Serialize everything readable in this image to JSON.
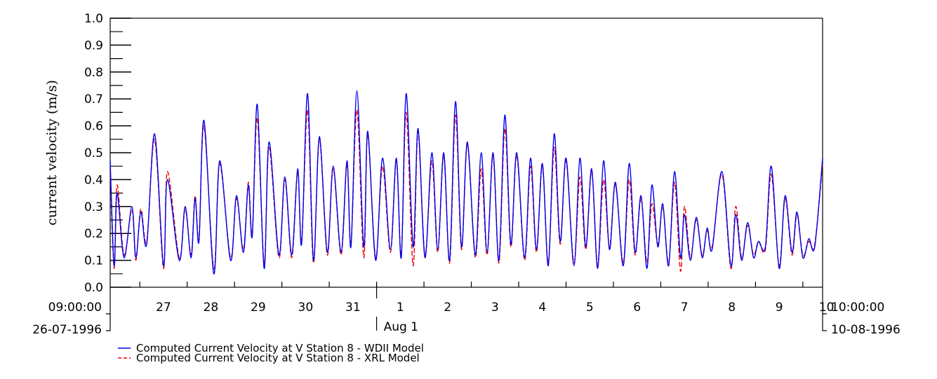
{
  "chart_data": {
    "type": "line",
    "title": "",
    "ylabel": "current velocity (m/s)",
    "xlabel": "",
    "ylim": [
      0.0,
      1.0
    ],
    "yticks": [
      0.0,
      0.1,
      0.2,
      0.3,
      0.4,
      0.5,
      0.6,
      0.7,
      0.8,
      0.9,
      1.0
    ],
    "ytick_labels": [
      "0.0",
      "0.1",
      "0.2",
      "0.3",
      "0.4",
      "0.5",
      "0.6",
      "0.7",
      "0.8",
      "0.9",
      "1.0"
    ],
    "xlim": [
      "1996-07-26 09:00",
      "1996-08-10 10:00"
    ],
    "x_start_label": {
      "time": "09:00:00",
      "date": "26-07-1996"
    },
    "x_end_label": {
      "time": "10:00:00",
      "date": "10-08-1996"
    },
    "x_ticks": [
      {
        "date": "1996-07-27",
        "label": "27"
      },
      {
        "date": "1996-07-28",
        "label": "28"
      },
      {
        "date": "1996-07-29",
        "label": "29"
      },
      {
        "date": "1996-07-30",
        "label": "30"
      },
      {
        "date": "1996-07-31",
        "label": "31"
      },
      {
        "date": "1996-08-01",
        "label": "1"
      },
      {
        "date": "1996-08-02",
        "label": "2"
      },
      {
        "date": "1996-08-03",
        "label": "3"
      },
      {
        "date": "1996-08-04",
        "label": "4"
      },
      {
        "date": "1996-08-05",
        "label": "5"
      },
      {
        "date": "1996-08-06",
        "label": "6"
      },
      {
        "date": "1996-08-07",
        "label": "7"
      },
      {
        "date": "1996-08-08",
        "label": "8"
      },
      {
        "date": "1996-08-09",
        "label": "9"
      },
      {
        "date": "1996-08-10",
        "label": "10"
      }
    ],
    "month_marker": {
      "date": "1996-08-01",
      "label": "Aug 1"
    },
    "legend_position": "bottom-left",
    "series": [
      {
        "name": "Computed Current Velocity at V Station 8 - WDII Model",
        "color": "#0000ee",
        "style": "solid",
        "points": [
          [
            "1996-07-26 09:00",
            0.47
          ],
          [
            "1996-07-26 11:00",
            0.08
          ],
          [
            "1996-07-26 12:30",
            0.35
          ],
          [
            "1996-07-26 16:00",
            0.11
          ],
          [
            "1996-07-26 20:00",
            0.3
          ],
          [
            "1996-07-26 22:00",
            0.11
          ],
          [
            "1996-07-27 00:30",
            0.28
          ],
          [
            "1996-07-27 03:30",
            0.16
          ],
          [
            "1996-07-27 07:30",
            0.57
          ],
          [
            "1996-07-27 12:00",
            0.08
          ],
          [
            "1996-07-27 14:00",
            0.4
          ],
          [
            "1996-07-27 20:00",
            0.1
          ],
          [
            "1996-07-27 23:00",
            0.3
          ],
          [
            "1996-07-28 02:00",
            0.11
          ],
          [
            "1996-07-28 04:00",
            0.33
          ],
          [
            "1996-07-28 06:00",
            0.17
          ],
          [
            "1996-07-28 08:30",
            0.62
          ],
          [
            "1996-07-28 13:30",
            0.05
          ],
          [
            "1996-07-28 16:30",
            0.47
          ],
          [
            "1996-07-28 22:00",
            0.1
          ],
          [
            "1996-07-29 01:00",
            0.34
          ],
          [
            "1996-07-29 04:30",
            0.13
          ],
          [
            "1996-07-29 07:00",
            0.38
          ],
          [
            "1996-07-29 09:00",
            0.19
          ],
          [
            "1996-07-29 11:30",
            0.68
          ],
          [
            "1996-07-29 15:00",
            0.07
          ],
          [
            "1996-07-29 17:30",
            0.54
          ],
          [
            "1996-07-29 22:30",
            0.12
          ],
          [
            "1996-07-30 01:30",
            0.41
          ],
          [
            "1996-07-30 05:00",
            0.12
          ],
          [
            "1996-07-30 08:00",
            0.44
          ],
          [
            "1996-07-30 10:00",
            0.16
          ],
          [
            "1996-07-30 13:00",
            0.72
          ],
          [
            "1996-07-30 16:00",
            0.1
          ],
          [
            "1996-07-30 19:00",
            0.56
          ],
          [
            "1996-07-30 23:00",
            0.13
          ],
          [
            "1996-07-31 02:00",
            0.45
          ],
          [
            "1996-07-31 06:00",
            0.13
          ],
          [
            "1996-07-31 09:00",
            0.47
          ],
          [
            "1996-07-31 11:00",
            0.15
          ],
          [
            "1996-07-31 14:00",
            0.73
          ],
          [
            "1996-07-31 17:30",
            0.15
          ],
          [
            "1996-07-31 19:30",
            0.58
          ],
          [
            "1996-07-31 23:30",
            0.1
          ],
          [
            "1996-08-01 03:00",
            0.48
          ],
          [
            "1996-08-01 07:00",
            0.14
          ],
          [
            "1996-08-01 10:00",
            0.48
          ],
          [
            "1996-08-01 12:30",
            0.11
          ],
          [
            "1996-08-01 15:00",
            0.72
          ],
          [
            "1996-08-01 18:30",
            0.15
          ],
          [
            "1996-08-01 21:00",
            0.59
          ],
          [
            "1996-08-02 00:30",
            0.11
          ],
          [
            "1996-08-02 04:00",
            0.5
          ],
          [
            "1996-08-02 07:00",
            0.14
          ],
          [
            "1996-08-02 10:00",
            0.5
          ],
          [
            "1996-08-02 13:00",
            0.1
          ],
          [
            "1996-08-02 16:00",
            0.69
          ],
          [
            "1996-08-02 19:00",
            0.15
          ],
          [
            "1996-08-02 22:00",
            0.54
          ],
          [
            "1996-08-03 02:00",
            0.12
          ],
          [
            "1996-08-03 05:00",
            0.5
          ],
          [
            "1996-08-03 08:00",
            0.13
          ],
          [
            "1996-08-03 11:00",
            0.5
          ],
          [
            "1996-08-03 14:00",
            0.1
          ],
          [
            "1996-08-03 17:00",
            0.64
          ],
          [
            "1996-08-03 20:00",
            0.16
          ],
          [
            "1996-08-03 23:00",
            0.5
          ],
          [
            "1996-08-04 03:00",
            0.11
          ],
          [
            "1996-08-04 06:00",
            0.48
          ],
          [
            "1996-08-04 09:00",
            0.14
          ],
          [
            "1996-08-04 12:00",
            0.46
          ],
          [
            "1996-08-04 15:00",
            0.08
          ],
          [
            "1996-08-04 18:00",
            0.57
          ],
          [
            "1996-08-04 21:00",
            0.17
          ],
          [
            "1996-08-05 00:00",
            0.48
          ],
          [
            "1996-08-05 04:00",
            0.08
          ],
          [
            "1996-08-05 07:00",
            0.48
          ],
          [
            "1996-08-05 10:00",
            0.15
          ],
          [
            "1996-08-05 13:00",
            0.44
          ],
          [
            "1996-08-05 16:00",
            0.07
          ],
          [
            "1996-08-05 19:00",
            0.47
          ],
          [
            "1996-08-05 22:00",
            0.14
          ],
          [
            "1996-08-06 01:00",
            0.39
          ],
          [
            "1996-08-06 05:00",
            0.08
          ],
          [
            "1996-08-06 08:00",
            0.46
          ],
          [
            "1996-08-06 11:00",
            0.13
          ],
          [
            "1996-08-06 14:00",
            0.34
          ],
          [
            "1996-08-06 17:00",
            0.07
          ],
          [
            "1996-08-06 19:30",
            0.38
          ],
          [
            "1996-08-06 22:30",
            0.15
          ],
          [
            "1996-08-07 01:00",
            0.31
          ],
          [
            "1996-08-07 04:00",
            0.08
          ],
          [
            "1996-08-07 07:00",
            0.43
          ],
          [
            "1996-08-07 10:00",
            0.11
          ],
          [
            "1996-08-07 12:00",
            0.27
          ],
          [
            "1996-08-07 15:00",
            0.1
          ],
          [
            "1996-08-07 18:00",
            0.26
          ],
          [
            "1996-08-07 21:00",
            0.11
          ],
          [
            "1996-08-07 23:30",
            0.22
          ],
          [
            "1996-08-08 02:00",
            0.14
          ],
          [
            "1996-08-08 07:00",
            0.43
          ],
          [
            "1996-08-08 11:30",
            0.08
          ],
          [
            "1996-08-08 14:00",
            0.27
          ],
          [
            "1996-08-08 17:00",
            0.1
          ],
          [
            "1996-08-08 20:00",
            0.24
          ],
          [
            "1996-08-08 23:00",
            0.11
          ],
          [
            "1996-08-09 01:30",
            0.17
          ],
          [
            "1996-08-09 05:00",
            0.15
          ],
          [
            "1996-08-09 08:00",
            0.45
          ],
          [
            "1996-08-09 12:00",
            0.07
          ],
          [
            "1996-08-09 15:00",
            0.34
          ],
          [
            "1996-08-09 18:30",
            0.13
          ],
          [
            "1996-08-09 21:00",
            0.28
          ],
          [
            "1996-08-10 00:00",
            0.11
          ],
          [
            "1996-08-10 03:00",
            0.18
          ],
          [
            "1996-08-10 06:00",
            0.15
          ],
          [
            "1996-08-10 10:00",
            0.48
          ]
        ]
      },
      {
        "name": "Computed Current Velocity at V Station 8 - XRL Model",
        "color": "#ee0000",
        "style": "dashed",
        "points": [
          [
            "1996-07-26 09:00",
            0.44
          ],
          [
            "1996-07-26 11:00",
            0.07
          ],
          [
            "1996-07-26 12:30",
            0.38
          ],
          [
            "1996-07-26 16:00",
            0.12
          ],
          [
            "1996-07-26 20:00",
            0.29
          ],
          [
            "1996-07-26 22:00",
            0.1
          ],
          [
            "1996-07-27 00:30",
            0.29
          ],
          [
            "1996-07-27 03:30",
            0.17
          ],
          [
            "1996-07-27 07:30",
            0.55
          ],
          [
            "1996-07-27 12:00",
            0.07
          ],
          [
            "1996-07-27 14:00",
            0.43
          ],
          [
            "1996-07-27 20:00",
            0.11
          ],
          [
            "1996-07-27 23:00",
            0.29
          ],
          [
            "1996-07-28 02:00",
            0.12
          ],
          [
            "1996-07-28 04:00",
            0.34
          ],
          [
            "1996-07-28 06:00",
            0.18
          ],
          [
            "1996-07-28 08:30",
            0.6
          ],
          [
            "1996-07-28 13:30",
            0.07
          ],
          [
            "1996-07-28 16:30",
            0.46
          ],
          [
            "1996-07-28 22:00",
            0.11
          ],
          [
            "1996-07-29 01:00",
            0.33
          ],
          [
            "1996-07-29 04:30",
            0.14
          ],
          [
            "1996-07-29 07:00",
            0.39
          ],
          [
            "1996-07-29 09:00",
            0.2
          ],
          [
            "1996-07-29 11:30",
            0.63
          ],
          [
            "1996-07-29 15:00",
            0.09
          ],
          [
            "1996-07-29 17:30",
            0.52
          ],
          [
            "1996-07-29 22:30",
            0.11
          ],
          [
            "1996-07-30 01:30",
            0.4
          ],
          [
            "1996-07-30 05:00",
            0.11
          ],
          [
            "1996-07-30 08:00",
            0.43
          ],
          [
            "1996-07-30 10:00",
            0.17
          ],
          [
            "1996-07-30 13:00",
            0.66
          ],
          [
            "1996-07-30 16:00",
            0.09
          ],
          [
            "1996-07-30 19:00",
            0.55
          ],
          [
            "1996-07-30 23:00",
            0.12
          ],
          [
            "1996-07-31 02:00",
            0.44
          ],
          [
            "1996-07-31 06:00",
            0.12
          ],
          [
            "1996-07-31 09:00",
            0.46
          ],
          [
            "1996-07-31 11:00",
            0.16
          ],
          [
            "1996-07-31 14:00",
            0.66
          ],
          [
            "1996-07-31 17:30",
            0.11
          ],
          [
            "1996-07-31 19:30",
            0.57
          ],
          [
            "1996-07-31 23:30",
            0.11
          ],
          [
            "1996-08-01 03:00",
            0.45
          ],
          [
            "1996-08-01 07:00",
            0.13
          ],
          [
            "1996-08-01 10:00",
            0.47
          ],
          [
            "1996-08-01 12:30",
            0.12
          ],
          [
            "1996-08-01 15:00",
            0.65
          ],
          [
            "1996-08-01 18:30",
            0.08
          ],
          [
            "1996-08-01 21:00",
            0.58
          ],
          [
            "1996-08-02 00:30",
            0.12
          ],
          [
            "1996-08-02 04:00",
            0.47
          ],
          [
            "1996-08-02 07:00",
            0.13
          ],
          [
            "1996-08-02 10:00",
            0.49
          ],
          [
            "1996-08-02 13:00",
            0.09
          ],
          [
            "1996-08-02 16:00",
            0.64
          ],
          [
            "1996-08-02 19:00",
            0.14
          ],
          [
            "1996-08-02 22:00",
            0.53
          ],
          [
            "1996-08-03 02:00",
            0.11
          ],
          [
            "1996-08-03 05:00",
            0.44
          ],
          [
            "1996-08-03 08:00",
            0.12
          ],
          [
            "1996-08-03 11:00",
            0.49
          ],
          [
            "1996-08-03 14:00",
            0.09
          ],
          [
            "1996-08-03 17:00",
            0.59
          ],
          [
            "1996-08-03 20:00",
            0.15
          ],
          [
            "1996-08-03 23:00",
            0.49
          ],
          [
            "1996-08-04 03:00",
            0.1
          ],
          [
            "1996-08-04 06:00",
            0.45
          ],
          [
            "1996-08-04 09:00",
            0.13
          ],
          [
            "1996-08-04 12:00",
            0.45
          ],
          [
            "1996-08-04 15:00",
            0.09
          ],
          [
            "1996-08-04 18:00",
            0.52
          ],
          [
            "1996-08-04 21:00",
            0.16
          ],
          [
            "1996-08-05 00:00",
            0.47
          ],
          [
            "1996-08-05 04:00",
            0.09
          ],
          [
            "1996-08-05 07:00",
            0.41
          ],
          [
            "1996-08-05 10:00",
            0.14
          ],
          [
            "1996-08-05 13:00",
            0.43
          ],
          [
            "1996-08-05 16:00",
            0.08
          ],
          [
            "1996-08-05 19:00",
            0.4
          ],
          [
            "1996-08-05 22:00",
            0.15
          ],
          [
            "1996-08-06 01:00",
            0.38
          ],
          [
            "1996-08-06 05:00",
            0.09
          ],
          [
            "1996-08-06 08:00",
            0.4
          ],
          [
            "1996-08-06 11:00",
            0.12
          ],
          [
            "1996-08-06 14:00",
            0.33
          ],
          [
            "1996-08-06 17:00",
            0.09
          ],
          [
            "1996-08-06 19:30",
            0.31
          ],
          [
            "1996-08-06 22:30",
            0.16
          ],
          [
            "1996-08-07 01:00",
            0.3
          ],
          [
            "1996-08-07 04:00",
            0.09
          ],
          [
            "1996-08-07 07:00",
            0.39
          ],
          [
            "1996-08-07 10:00",
            0.06
          ],
          [
            "1996-08-07 12:00",
            0.3
          ],
          [
            "1996-08-07 15:00",
            0.11
          ],
          [
            "1996-08-07 18:00",
            0.25
          ],
          [
            "1996-08-07 21:00",
            0.12
          ],
          [
            "1996-08-07 23:30",
            0.21
          ],
          [
            "1996-08-08 02:00",
            0.15
          ],
          [
            "1996-08-08 07:00",
            0.42
          ],
          [
            "1996-08-08 11:30",
            0.07
          ],
          [
            "1996-08-08 14:00",
            0.3
          ],
          [
            "1996-08-08 17:00",
            0.11
          ],
          [
            "1996-08-08 20:00",
            0.23
          ],
          [
            "1996-08-08 23:00",
            0.12
          ],
          [
            "1996-08-09 01:30",
            0.17
          ],
          [
            "1996-08-09 05:00",
            0.14
          ],
          [
            "1996-08-09 08:00",
            0.42
          ],
          [
            "1996-08-09 12:00",
            0.08
          ],
          [
            "1996-08-09 15:00",
            0.33
          ],
          [
            "1996-08-09 18:30",
            0.12
          ],
          [
            "1996-08-09 21:00",
            0.27
          ],
          [
            "1996-08-10 00:00",
            0.12
          ],
          [
            "1996-08-10 03:00",
            0.17
          ],
          [
            "1996-08-10 06:00",
            0.16
          ],
          [
            "1996-08-10 10:00",
            0.46
          ]
        ]
      }
    ]
  }
}
